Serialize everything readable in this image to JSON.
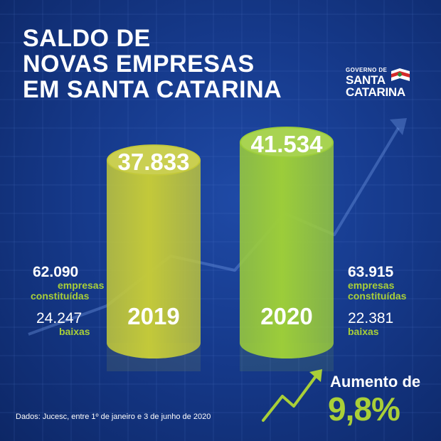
{
  "title_lines": [
    "SALDO DE",
    "NOVAS EMPRESAS",
    "EM SANTA CATARINA"
  ],
  "logo": {
    "small": "GOVERNO DE",
    "line1": "SANTA",
    "line2": "CATARINA"
  },
  "chart_data": {
    "type": "bar",
    "categories": [
      "2019",
      "2020"
    ],
    "values": [
      37833,
      41534
    ],
    "value_labels": [
      "37.833",
      "41.534"
    ],
    "colors": [
      "#c3c93a",
      "#9ccd3a"
    ]
  },
  "stats_2019": {
    "constituidas": "62.090",
    "constituidas_label": [
      "empresas",
      "constituídas"
    ],
    "baixas": "24.247",
    "baixas_label": "baixas"
  },
  "stats_2020": {
    "constituidas": "63.915",
    "constituidas_label": [
      "empresas",
      "constituídas"
    ],
    "baixas": "22.381",
    "baixas_label": "baixas"
  },
  "increase": {
    "label": "Aumento de",
    "value": "9,8%"
  },
  "source": "Dados: Jucesc, entre 1º de janeiro e 3 de junho de 2020",
  "colors": {
    "background": "#163a8c",
    "accent": "#a9cf38"
  }
}
